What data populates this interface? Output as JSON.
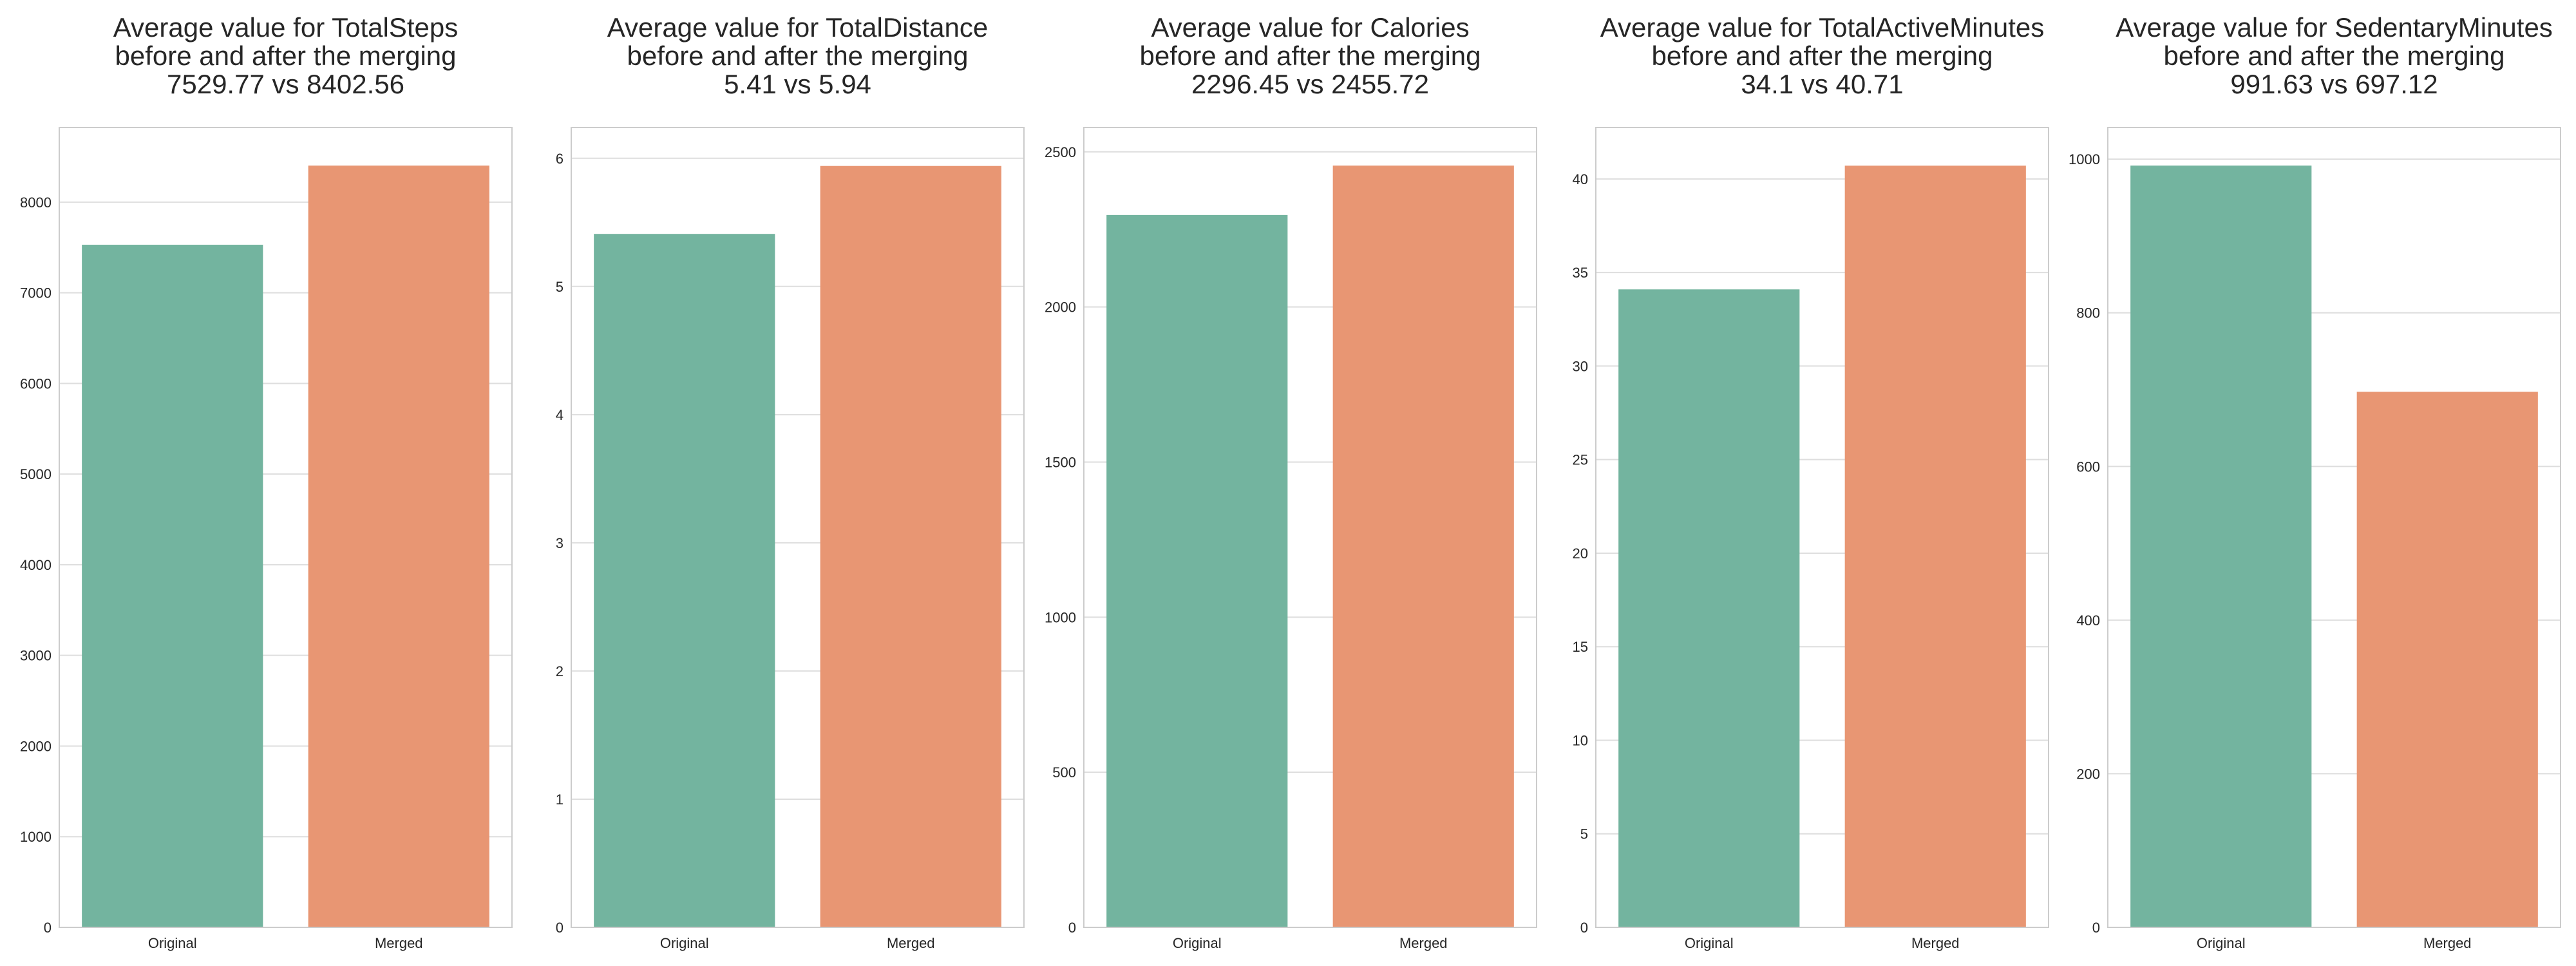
{
  "colors": {
    "original": "#73b49f",
    "merged": "#e89673"
  },
  "chart_data": [
    {
      "type": "bar",
      "title": [
        "Average value for TotalSteps",
        "before and after the merging",
        "7529.77 vs 8402.56"
      ],
      "categories": [
        "Original",
        "Merged"
      ],
      "values": [
        7529.77,
        8402.56
      ],
      "ylim": [
        0,
        8822.69
      ],
      "yticks": [
        0,
        1000,
        2000,
        3000,
        4000,
        5000,
        6000,
        7000,
        8000
      ],
      "xlabel": "",
      "ylabel": "",
      "grid": true
    },
    {
      "type": "bar",
      "title": [
        "Average value for TotalDistance",
        "before and after the merging",
        "5.41 vs 5.94"
      ],
      "categories": [
        "Original",
        "Merged"
      ],
      "values": [
        5.41,
        5.94
      ],
      "ylim": [
        0,
        6.24
      ],
      "yticks": [
        0,
        1,
        2,
        3,
        4,
        5,
        6
      ],
      "xlabel": "",
      "ylabel": "",
      "grid": true
    },
    {
      "type": "bar",
      "title": [
        "Average value for Calories",
        "before and after the merging",
        "2296.45 vs 2455.72"
      ],
      "categories": [
        "Original",
        "Merged"
      ],
      "values": [
        2296.45,
        2455.72
      ],
      "ylim": [
        0,
        2578.5
      ],
      "yticks": [
        0,
        500,
        1000,
        1500,
        2000,
        2500
      ],
      "xlabel": "",
      "ylabel": "",
      "grid": true
    },
    {
      "type": "bar",
      "title": [
        "Average value for TotalActiveMinutes",
        "before and after the merging",
        "34.1 vs 40.71"
      ],
      "categories": [
        "Original",
        "Merged"
      ],
      "values": [
        34.1,
        40.71
      ],
      "ylim": [
        0,
        42.75
      ],
      "yticks": [
        0,
        5,
        10,
        15,
        20,
        25,
        30,
        35,
        40
      ],
      "xlabel": "",
      "ylabel": "",
      "grid": true
    },
    {
      "type": "bar",
      "title": [
        "Average value for SedentaryMinutes",
        "before and after the merging",
        "991.63 vs 697.12"
      ],
      "categories": [
        "Original",
        "Merged"
      ],
      "values": [
        991.63,
        697.12
      ],
      "ylim": [
        0,
        1041.2
      ],
      "yticks": [
        0,
        200,
        400,
        600,
        800,
        1000
      ],
      "xlabel": "",
      "ylabel": "",
      "grid": true
    }
  ]
}
